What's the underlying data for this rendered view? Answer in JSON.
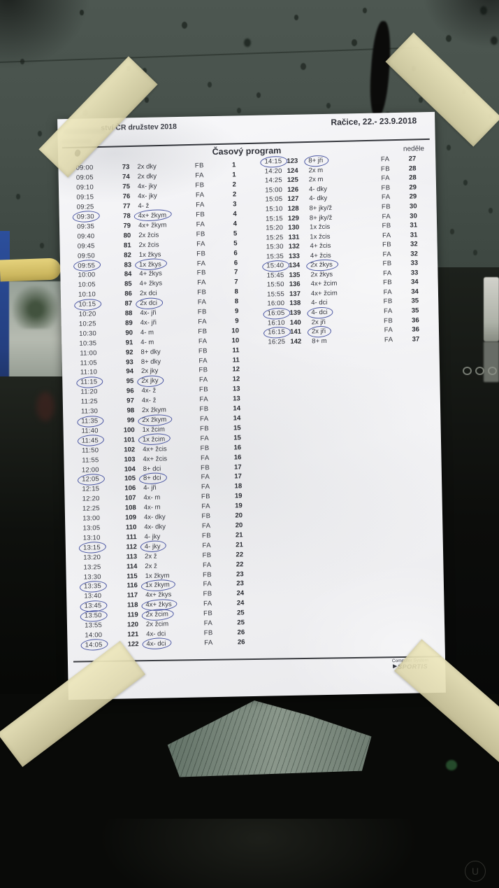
{
  "paper": {
    "header": {
      "title_fragment": "ství ČR družstev 2018",
      "location_date": "Račice, 22.- 23.9.2018",
      "program_title": "Časový program",
      "day_label": "neděle"
    },
    "row_format": [
      "time",
      "race_no",
      "boat_class",
      "final",
      "block",
      "circled"
    ],
    "left_rows": [
      [
        "09:00",
        "73",
        "2x dky",
        "FB",
        "1",
        0
      ],
      [
        "09:05",
        "74",
        "2x dky",
        "FA",
        "1",
        0
      ],
      [
        "09:10",
        "75",
        "4x- jky",
        "FB",
        "2",
        0
      ],
      [
        "09:15",
        "76",
        "4x- jky",
        "FA",
        "2",
        0
      ],
      [
        "09:25",
        "77",
        "4- ž",
        "FA",
        "3",
        0
      ],
      [
        "09:30",
        "78",
        "4x+ žkym",
        "FB",
        "4",
        1
      ],
      [
        "09:35",
        "79",
        "4x+ žkym",
        "FA",
        "4",
        0
      ],
      [
        "09:40",
        "80",
        "2x žcis",
        "FB",
        "5",
        0
      ],
      [
        "09:45",
        "81",
        "2x žcis",
        "FA",
        "5",
        0
      ],
      [
        "09:50",
        "82",
        "1x žkys",
        "FB",
        "6",
        0
      ],
      [
        "09:55",
        "83",
        "1x žkys",
        "FA",
        "6",
        1
      ],
      [
        "10:00",
        "84",
        "4+ žkys",
        "FB",
        "7",
        0
      ],
      [
        "10:05",
        "85",
        "4+ žkys",
        "FA",
        "7",
        0
      ],
      [
        "10:10",
        "86",
        "2x dci",
        "FB",
        "8",
        0
      ],
      [
        "10:15",
        "87",
        "2x dci",
        "FA",
        "8",
        1
      ],
      [
        "10:20",
        "88",
        "4x- jři",
        "FB",
        "9",
        0
      ],
      [
        "10:25",
        "89",
        "4x- jři",
        "FA",
        "9",
        0
      ],
      [
        "10:30",
        "90",
        "4- m",
        "FB",
        "10",
        0
      ],
      [
        "10:35",
        "91",
        "4- m",
        "FA",
        "10",
        0
      ],
      [
        "11:00",
        "92",
        "8+ dky",
        "FB",
        "11",
        0
      ],
      [
        "11:05",
        "93",
        "8+ dky",
        "FA",
        "11",
        0
      ],
      [
        "11:10",
        "94",
        "2x jky",
        "FB",
        "12",
        0
      ],
      [
        "11:15",
        "95",
        "2x jky",
        "FA",
        "12",
        1
      ],
      [
        "11:20",
        "96",
        "4x- ž",
        "FB",
        "13",
        0
      ],
      [
        "11:25",
        "97",
        "4x- ž",
        "FA",
        "13",
        0
      ],
      [
        "11:30",
        "98",
        "2x žkym",
        "FB",
        "14",
        0
      ],
      [
        "11:35",
        "99",
        "2x žkym",
        "FA",
        "14",
        1
      ],
      [
        "11:40",
        "100",
        "1x žcim",
        "FB",
        "15",
        0
      ],
      [
        "11:45",
        "101",
        "1x žcim",
        "FA",
        "15",
        1
      ],
      [
        "11:50",
        "102",
        "4x+ žcis",
        "FB",
        "16",
        0
      ],
      [
        "11:55",
        "103",
        "4x+ žcis",
        "FA",
        "16",
        0
      ],
      [
        "12:00",
        "104",
        "8+ dci",
        "FB",
        "17",
        0
      ],
      [
        "12:05",
        "105",
        "8+ dci",
        "FA",
        "17",
        1
      ],
      [
        "12:15",
        "106",
        "4- jři",
        "FA",
        "18",
        0
      ],
      [
        "12:20",
        "107",
        "4x- m",
        "FB",
        "19",
        0
      ],
      [
        "12:25",
        "108",
        "4x- m",
        "FA",
        "19",
        0
      ],
      [
        "13:00",
        "109",
        "4x- dky",
        "FB",
        "20",
        0
      ],
      [
        "13:05",
        "110",
        "4x- dky",
        "FA",
        "20",
        0
      ],
      [
        "13:10",
        "111",
        "4- jky",
        "FB",
        "21",
        0
      ],
      [
        "13:15",
        "112",
        "4- jky",
        "FA",
        "21",
        1
      ],
      [
        "13:20",
        "113",
        "2x ž",
        "FB",
        "22",
        0
      ],
      [
        "13:25",
        "114",
        "2x ž",
        "FA",
        "22",
        0
      ],
      [
        "13:30",
        "115",
        "1x žkym",
        "FB",
        "23",
        0
      ],
      [
        "13:35",
        "116",
        "1x žkym",
        "FA",
        "23",
        1
      ],
      [
        "13:40",
        "117",
        "4x+ žkys",
        "FB",
        "24",
        0
      ],
      [
        "13:45",
        "118",
        "4x+ žkys",
        "FA",
        "24",
        1
      ],
      [
        "13:50",
        "119",
        "2x žcim",
        "FB",
        "25",
        1
      ],
      [
        "13:55",
        "120",
        "2x žcim",
        "FA",
        "25",
        0
      ],
      [
        "14:00",
        "121",
        "4x- dci",
        "FB",
        "26",
        0
      ],
      [
        "14:05",
        "122",
        "4x- dci",
        "FA",
        "26",
        1
      ]
    ],
    "right_rows": [
      [
        "14:15",
        "123",
        "8+ jři",
        "FA",
        "27",
        1
      ],
      [
        "14:20",
        "124",
        "2x m",
        "FB",
        "28",
        0
      ],
      [
        "14:25",
        "125",
        "2x m",
        "FA",
        "28",
        0
      ],
      [
        "15:00",
        "126",
        "4- dky",
        "FB",
        "29",
        0
      ],
      [
        "15:05",
        "127",
        "4- dky",
        "FA",
        "29",
        0
      ],
      [
        "15:10",
        "128",
        "8+ jky/ž",
        "FB",
        "30",
        0
      ],
      [
        "15:15",
        "129",
        "8+ jky/ž",
        "FA",
        "30",
        0
      ],
      [
        "15:20",
        "130",
        "1x žcis",
        "FB",
        "31",
        0
      ],
      [
        "15:25",
        "131",
        "1x žcis",
        "FA",
        "31",
        0
      ],
      [
        "15:30",
        "132",
        "4+ žcis",
        "FB",
        "32",
        0
      ],
      [
        "15:35",
        "133",
        "4+ žcis",
        "FA",
        "32",
        0
      ],
      [
        "15:40",
        "134",
        "2x žkys",
        "FB",
        "33",
        1
      ],
      [
        "15:45",
        "135",
        "2x žkys",
        "FA",
        "33",
        0
      ],
      [
        "15:50",
        "136",
        "4x+ žcim",
        "FB",
        "34",
        0
      ],
      [
        "15:55",
        "137",
        "4x+ žcim",
        "FA",
        "34",
        0
      ],
      [
        "16:00",
        "138",
        "4- dci",
        "FB",
        "35",
        0
      ],
      [
        "16:05",
        "139",
        "4- dci",
        "FA",
        "35",
        1
      ],
      [
        "16:10",
        "140",
        "2x jři",
        "FB",
        "36",
        0
      ],
      [
        "16:15",
        "141",
        "2x jři",
        "FA",
        "36",
        1
      ],
      [
        "16:25",
        "142",
        "8+ m",
        "FA",
        "37",
        0
      ]
    ],
    "footer": {
      "line1": "Computer System",
      "line2": "SPORTIS"
    }
  },
  "colors": {
    "pen_circle": "#2b3a94",
    "tape": "#e9e3bd",
    "glass": "#46514c",
    "paper": "#f2f3f5"
  }
}
